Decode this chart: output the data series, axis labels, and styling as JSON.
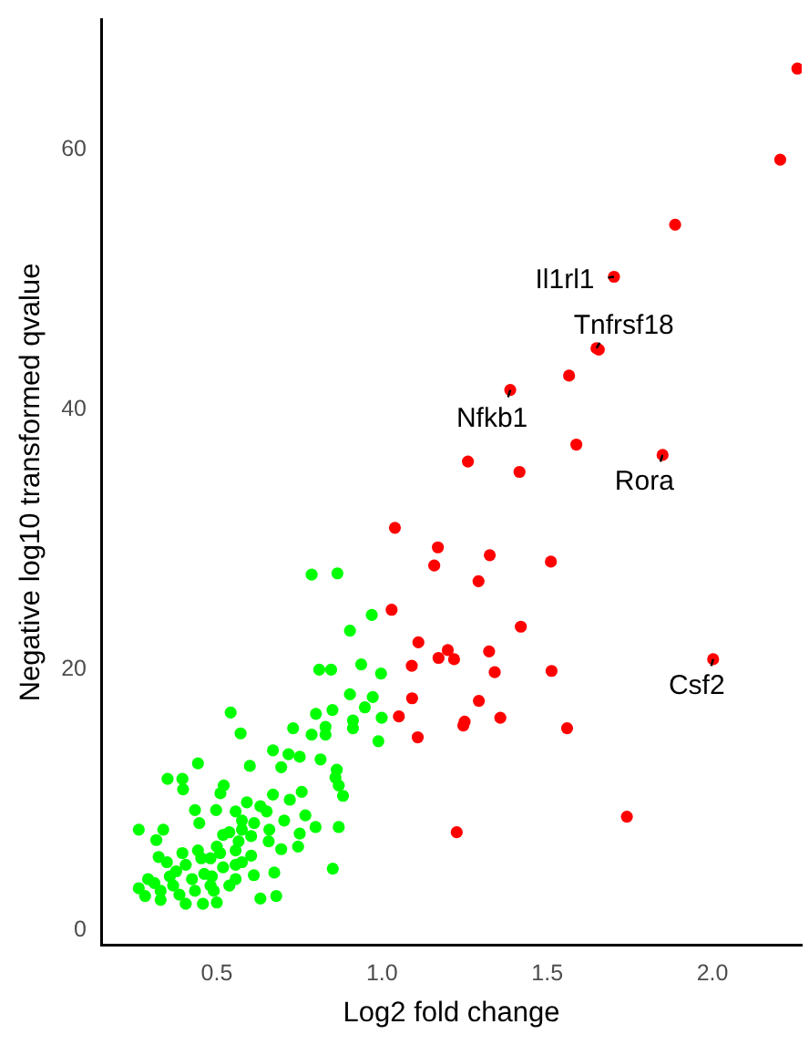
{
  "chart_data": {
    "type": "scatter",
    "xlabel": "Log2 fold change",
    "ylabel": "Negative log10 transformed qvalue",
    "xlim": [
      0.15,
      2.27
    ],
    "ylim": [
      -1.2,
      70
    ],
    "xticks": [
      0.5,
      {
        "value": 1,
        "label": "1.0"
      },
      1.5,
      {
        "value": 2,
        "label": "2.0"
      }
    ],
    "yticks": [
      0,
      20,
      40,
      60
    ],
    "grid": false,
    "legend": false,
    "marker": "circle",
    "series": [
      {
        "color": "#00ff00",
        "x": [
          0.787,
          0.865,
          0.969,
          0.903,
          0.937,
          0.81,
          0.846,
          0.997,
          0.903,
          0.972,
          0.948,
          0.999,
          0.912,
          0.542,
          0.8,
          0.85,
          0.572,
          0.731,
          0.787,
          0.829,
          0.829,
          0.912,
          0.989,
          0.67,
          0.717,
          0.751,
          0.695,
          0.814,
          0.6,
          0.443,
          0.351,
          0.396,
          0.398,
          0.863,
          0.859,
          0.869,
          0.882,
          0.757,
          0.721,
          0.67,
          0.521,
          0.511,
          0.591,
          0.632,
          0.434,
          0.498,
          0.557,
          0.704,
          0.768,
          0.799,
          0.869,
          0.751,
          0.659,
          0.264,
          0.338,
          0.317,
          0.447,
          0.604,
          0.657,
          0.519,
          0.746,
          0.695,
          0.324,
          0.396,
          0.443,
          0.5,
          0.557,
          0.604,
          0.851,
          0.674,
          0.612,
          0.557,
          0.485,
          0.377,
          0.349,
          0.292,
          0.264,
          0.283,
          0.33,
          0.387,
          0.434,
          0.491,
          0.458,
          0.5,
          0.632,
          0.68,
          0.406,
          0.557,
          0.481,
          0.538,
          0.576,
          0.311,
          0.368,
          0.425,
          0.462,
          0.519,
          0.576,
          0.481,
          0.538,
          0.33,
          0.358,
          0.406,
          0.453,
          0.51,
          0.566,
          0.613,
          0.651,
          0.576
        ],
        "values": [
          27.3,
          27.4,
          24.2,
          23.0,
          20.4,
          20.0,
          20.0,
          19.7,
          18.1,
          17.9,
          17.1,
          16.3,
          16.1,
          16.7,
          16.6,
          16.9,
          15.1,
          15.5,
          15.0,
          15.6,
          15.0,
          15.5,
          14.5,
          13.8,
          13.5,
          13.3,
          12.5,
          13.1,
          12.6,
          12.8,
          11.6,
          11.6,
          10.8,
          12.3,
          11.7,
          11.1,
          10.3,
          10.6,
          10.0,
          10.4,
          11.1,
          10.5,
          9.8,
          9.5,
          9.2,
          9.2,
          9.1,
          8.4,
          8.8,
          7.9,
          7.9,
          7.4,
          7.7,
          7.7,
          7.7,
          6.9,
          8.2,
          7.2,
          6.8,
          7.3,
          6.4,
          6.2,
          5.6,
          5.9,
          6.1,
          6.4,
          6.1,
          5.7,
          4.7,
          4.4,
          4.2,
          3.9,
          4.1,
          4.5,
          5.2,
          3.9,
          3.2,
          2.6,
          2.3,
          2.7,
          3.0,
          3.0,
          2.0,
          2.1,
          2.4,
          2.6,
          2.0,
          5.0,
          5.5,
          7.5,
          8.4,
          3.6,
          3.4,
          3.9,
          4.3,
          4.8,
          5.2,
          3.4,
          3.4,
          3.0,
          4.1,
          5.0,
          5.5,
          5.9,
          6.8,
          8.2,
          9.1,
          7.7
        ]
      },
      {
        "color": "#ff0000",
        "x": [
          2.257,
          2.205,
          1.887,
          1.702,
          1.649,
          1.656,
          1.566,
          1.388,
          1.588,
          1.26,
          1.416,
          1.849,
          1.039,
          1.169,
          1.158,
          1.326,
          1.511,
          1.292,
          1.029,
          1.42,
          1.11,
          1.199,
          1.171,
          1.218,
          1.324,
          1.09,
          1.341,
          1.513,
          2.002,
          1.091,
          1.293,
          1.051,
          1.358,
          1.25,
          1.246,
          1.108,
          1.56,
          1.741,
          1.226
        ],
        "values": [
          66.2,
          59.2,
          54.2,
          50.2,
          44.7,
          44.6,
          42.6,
          41.5,
          37.3,
          36.0,
          35.2,
          36.5,
          30.9,
          29.4,
          28.0,
          28.8,
          28.3,
          26.8,
          24.6,
          23.3,
          22.1,
          21.5,
          20.9,
          20.8,
          21.4,
          20.3,
          19.8,
          19.9,
          20.8,
          17.8,
          17.6,
          16.4,
          16.3,
          16.0,
          15.7,
          14.8,
          15.5,
          8.7,
          7.5
        ]
      }
    ],
    "annotations": [
      {
        "text": "Il1rl1",
        "x": 1.702,
        "y": 50.2
      },
      {
        "text": "Tnfrsf18",
        "x": 1.649,
        "y": 44.7
      },
      {
        "text": "Nfkb1",
        "x": 1.388,
        "y": 41.5
      },
      {
        "text": "Rora",
        "x": 1.849,
        "y": 36.5
      },
      {
        "text": "Csf2",
        "x": 2.002,
        "y": 20.8
      }
    ]
  }
}
